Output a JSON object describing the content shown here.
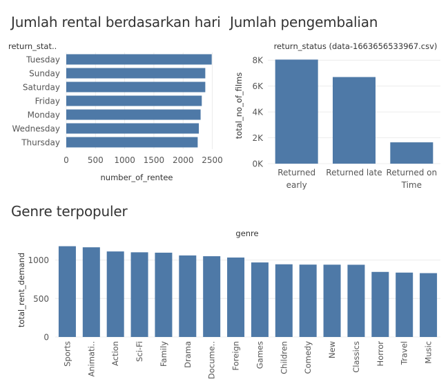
{
  "titles": {
    "rental_by_day": "Jumlah rental berdasarkan hari",
    "returns": "Jumlah pengembalian",
    "genre": "Genre terpopuler"
  },
  "colors": {
    "bar": "#4e79a7",
    "grid": "#ececec",
    "text": "#555555"
  },
  "chart_data": [
    {
      "type": "bar",
      "orientation": "horizontal",
      "title": "Jumlah rental berdasarkan hari",
      "ylabel": "return_stat..",
      "xlabel": "number_of_rentee",
      "categories": [
        "Tuesday",
        "Sunday",
        "Saturday",
        "Friday",
        "Monday",
        "Wednesday",
        "Thursday"
      ],
      "values": [
        2490,
        2380,
        2380,
        2320,
        2300,
        2270,
        2250
      ],
      "xlim": [
        0,
        2600
      ],
      "xticks": [
        0,
        500,
        1000,
        1500,
        2000,
        2500
      ],
      "grid": true
    },
    {
      "type": "bar",
      "title": "Jumlah pengembalian",
      "subtitle": "return_status (data-1663656533967.csv)",
      "ylabel": "total_no_of_films",
      "categories": [
        [
          "Returned",
          "early"
        ],
        [
          "Returned late"
        ],
        [
          "Returned on",
          "Time"
        ]
      ],
      "values": [
        8050,
        6700,
        1650
      ],
      "ylim": [
        0,
        8600
      ],
      "yticks": [
        0,
        2000,
        4000,
        6000,
        8000
      ],
      "ytick_labels": [
        "0K",
        "2K",
        "4K",
        "6K",
        "8K"
      ],
      "grid": true
    },
    {
      "type": "bar",
      "title": "Genre terpopuler",
      "subtitle": "genre",
      "ylabel": "total_rent_demand",
      "categories": [
        "Sports",
        "Animati..",
        "Action",
        "Sci-Fi",
        "Family",
        "Drama",
        "Docume..",
        "Foreign",
        "Games",
        "Children",
        "Comedy",
        "New",
        "Classics",
        "Horror",
        "Travel",
        "Music"
      ],
      "values": [
        1180,
        1166,
        1112,
        1101,
        1096,
        1060,
        1050,
        1033,
        969,
        945,
        941,
        940,
        939,
        846,
        837,
        830
      ],
      "ylim": [
        0,
        1230
      ],
      "yticks": [
        0,
        500,
        1000
      ],
      "grid": true
    }
  ]
}
